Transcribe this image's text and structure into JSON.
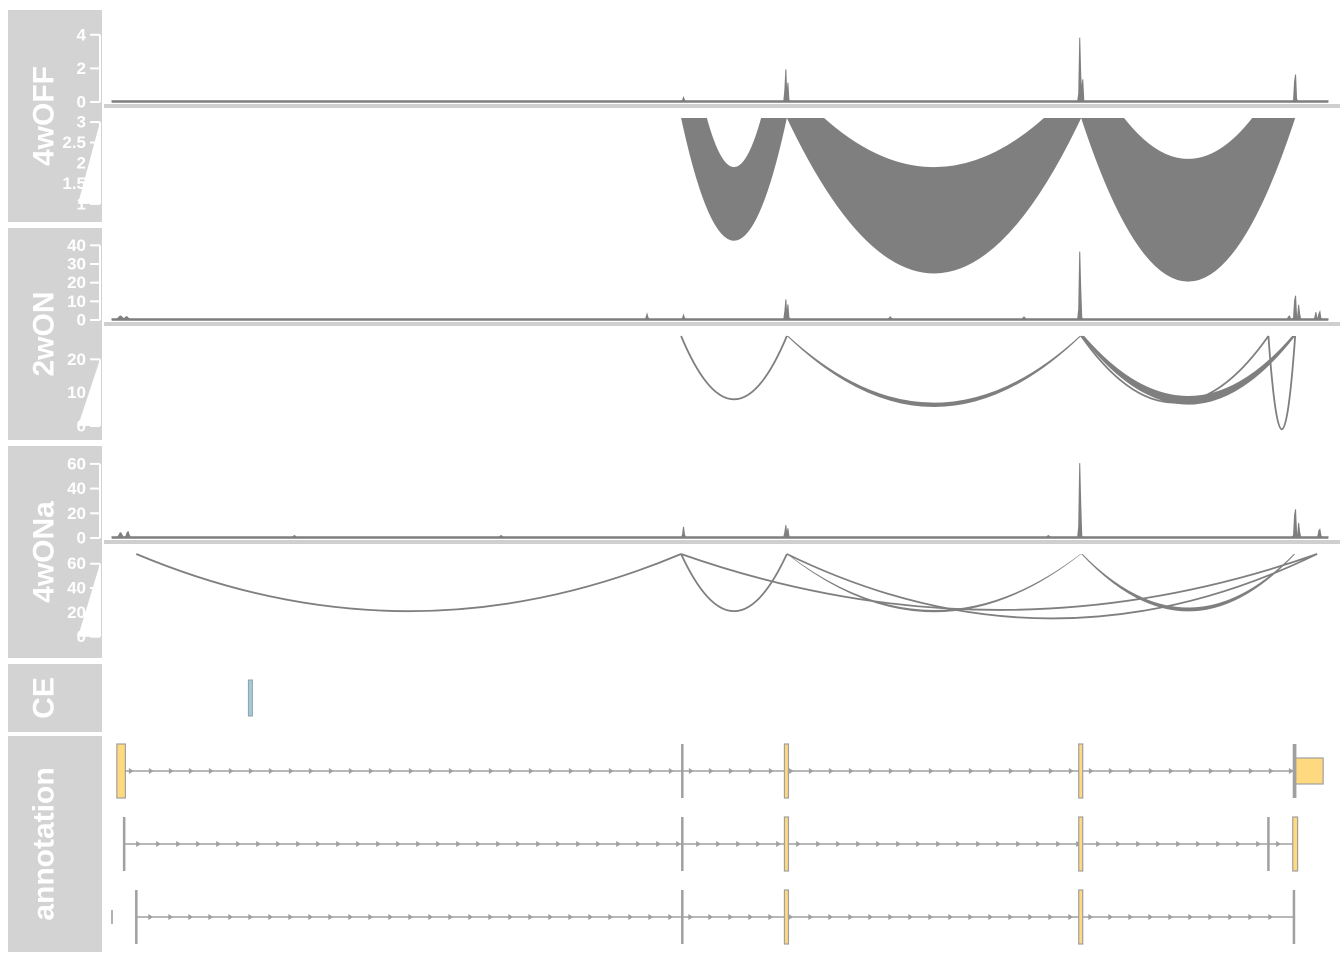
{
  "chart_data": {
    "type": "genome-tracks",
    "colors": {
      "panel": "#d3d3d3",
      "strip_text": "#ffffff",
      "coverage": "#7f7f7f",
      "arc": "#7f7f7f",
      "exon_fill": "#ffd97f",
      "ce_fill": "#a9c7d4",
      "intron": "#a0a0a0"
    },
    "x_range": [
      0,
      1000
    ],
    "tracks": [
      {
        "name": "4wOFF",
        "coverage": {
          "ylim": [
            0,
            5
          ],
          "ticks": [
            "0",
            "2",
            "4"
          ],
          "tick_values": [
            0,
            2,
            4
          ],
          "peaks": [
            [
              470,
              0.2,
              1.5
            ],
            [
              554,
              2.0,
              1.5
            ],
            [
              556,
              1.3,
              0.9
            ],
            [
              796,
              4.0,
              1.6
            ],
            [
              798,
              2.8,
              0.9
            ],
            [
              973,
              2.0,
              1.6
            ]
          ]
        },
        "junctions": {
          "ylim": [
            0.9,
            3.1
          ],
          "ticks": [
            "1",
            "1.5",
            "2",
            "2.5",
            "3"
          ],
          "tick_values": [
            1,
            1.5,
            2,
            2.5,
            3
          ],
          "arcs": [
            {
              "from": 468,
              "to": 555,
              "depth": 1.2,
              "width": 1.8
            },
            {
              "from": 555,
              "to": 797,
              "depth": 1.2,
              "width": 2.6
            },
            {
              "from": 797,
              "to": 973,
              "depth": 1.0,
              "width": 3.0
            }
          ]
        }
      },
      {
        "name": "2wON",
        "coverage": {
          "ylim": [
            0,
            45
          ],
          "ticks": [
            "0",
            "10",
            "20",
            "30",
            "40"
          ],
          "tick_values": [
            0,
            10,
            20,
            30,
            40
          ],
          "peaks": [
            [
              7,
              1.5,
              4
            ],
            [
              12,
              1.2,
              3
            ],
            [
              440,
              2.5,
              1.6
            ],
            [
              470,
              2.0,
              1.5
            ],
            [
              554,
              11,
              1.6
            ],
            [
              556,
              9,
              1.0
            ],
            [
              640,
              1.0,
              2
            ],
            [
              750,
              1.0,
              2
            ],
            [
              796,
              38,
              1.7
            ],
            [
              968,
              2.0,
              1.5
            ],
            [
              973,
              15,
              1.8
            ],
            [
              976,
              8,
              1.5
            ],
            [
              990,
              3.5,
              1.5
            ],
            [
              993,
              5,
              1.5
            ]
          ]
        },
        "junctions": {
          "ylim": [
            0,
            27
          ],
          "ticks": [
            "0",
            "10",
            "20"
          ],
          "tick_values": [
            0,
            10,
            20
          ],
          "arcs": [
            {
              "from": 468,
              "to": 555,
              "depth": 19,
              "width": 0.35
            },
            {
              "from": 555,
              "to": 797,
              "depth": 20,
              "width": 1.3
            },
            {
              "from": 797,
              "to": 973,
              "depth": 18,
              "width": 2.6
            },
            {
              "from": 797,
              "to": 951,
              "depth": 20,
              "width": 0.35
            },
            {
              "from": 951,
              "to": 973,
              "depth": 28,
              "width": 0.35
            }
          ]
        }
      },
      {
        "name": "4wONa",
        "coverage": {
          "ylim": [
            0,
            68
          ],
          "ticks": [
            "0",
            "20",
            "40",
            "60"
          ],
          "tick_values": [
            0,
            20,
            40,
            60
          ],
          "peaks": [
            [
              7,
              3.5,
              3
            ],
            [
              13,
              4.5,
              2.5
            ],
            [
              150,
              1.0,
              2
            ],
            [
              320,
              1.0,
              2
            ],
            [
              470,
              8,
              1.5
            ],
            [
              554,
              10,
              1.6
            ],
            [
              556,
              8,
              1.0
            ],
            [
              770,
              1.0,
              2
            ],
            [
              796,
              63,
              1.7
            ],
            [
              973,
              27,
              1.8
            ],
            [
              976,
              12,
              1.5
            ],
            [
              993,
              7,
              2
            ]
          ]
        },
        "junctions": {
          "ylim": [
            -6,
            68
          ],
          "ticks": [
            "0",
            "20",
            "40",
            "60"
          ],
          "tick_values": [
            0,
            20,
            40,
            60
          ],
          "arcs": [
            {
              "from": 20,
              "to": 468,
              "depth": 47,
              "width": 0.25
            },
            {
              "from": 468,
              "to": 555,
              "depth": 47,
              "width": 0.7
            },
            {
              "from": 468,
              "to": 991,
              "depth": 46,
              "width": 0.25
            },
            {
              "from": 555,
              "to": 797,
              "depth": 46,
              "width": 1.9
            },
            {
              "from": 555,
              "to": 991,
              "depth": 53,
              "width": 0.25
            },
            {
              "from": 797,
              "to": 973,
              "depth": 44,
              "width": 3.2
            }
          ]
        }
      }
    ],
    "ce": {
      "name": "CE",
      "regions": [
        [
          113,
          116
        ]
      ]
    },
    "annotation": {
      "name": "annotation",
      "transcripts": [
        {
          "start": 4,
          "end": 996,
          "exons": [
            {
              "start": 4,
              "end": 11,
              "coding": true
            },
            {
              "start": 469,
              "end": 470,
              "coding": false
            },
            {
              "start": 553,
              "end": 556,
              "coding": true
            },
            {
              "start": 795,
              "end": 798,
              "coding": true
            },
            {
              "start": 972,
              "end": 973,
              "coding": false
            },
            {
              "start": 973,
              "end": 996,
              "coding": true,
              "utr": true
            }
          ]
        },
        {
          "start": 10,
          "end": 975,
          "exons": [
            {
              "start": 10,
              "end": 11,
              "coding": false
            },
            {
              "start": 469,
              "end": 470,
              "coding": false
            },
            {
              "start": 553,
              "end": 556,
              "coding": true
            },
            {
              "start": 795,
              "end": 798,
              "coding": true
            },
            {
              "start": 951,
              "end": 952,
              "coding": false
            },
            {
              "start": 971,
              "end": 975,
              "coding": true
            }
          ]
        },
        {
          "start": 20,
          "end": 973,
          "lead_exon": {
            "start": 0,
            "end": 1
          },
          "exons": [
            {
              "start": 20,
              "end": 21,
              "coding": false
            },
            {
              "start": 469,
              "end": 470,
              "coding": false
            },
            {
              "start": 553,
              "end": 556,
              "coding": true
            },
            {
              "start": 795,
              "end": 798,
              "coding": true
            },
            {
              "start": 972,
              "end": 973,
              "coding": false
            }
          ]
        }
      ]
    }
  }
}
